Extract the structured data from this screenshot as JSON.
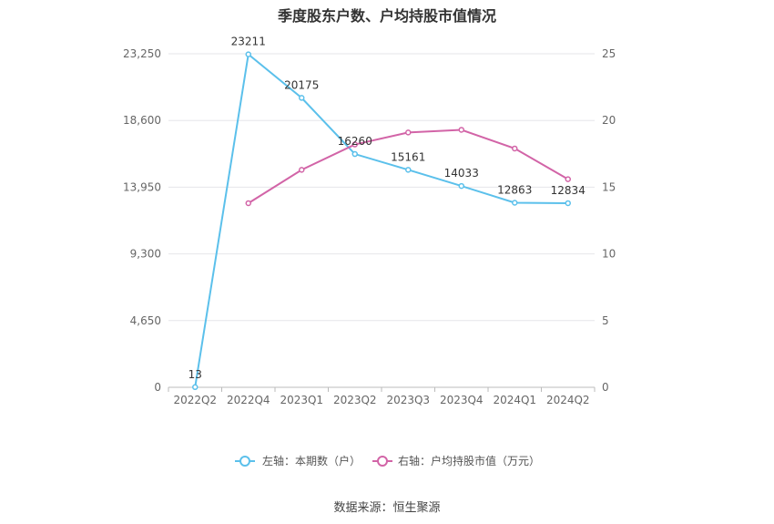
{
  "title": "季度股东户数、户均持股市值情况",
  "source": "数据来源：恒生聚源",
  "colors": {
    "left": "#5bc0eb",
    "right": "#d264a7",
    "grid": "#e6e6ea",
    "axis": "#bbbbbb"
  },
  "legend": {
    "left": "左轴：本期数（户）",
    "right": "右轴：户均持股市值（万元）"
  },
  "chart_data": {
    "type": "line",
    "categories": [
      "2022Q2",
      "2022Q4",
      "2023Q1",
      "2023Q2",
      "2023Q3",
      "2023Q4",
      "2024Q1",
      "2024Q2"
    ],
    "y_left": {
      "ylim": [
        0,
        23250
      ],
      "ticks": [
        "0",
        "4,650",
        "9,300",
        "13,950",
        "18,600",
        "23,250"
      ]
    },
    "y_right": {
      "ylim": [
        0,
        25
      ],
      "ticks": [
        "0",
        "5",
        "10",
        "15",
        "20",
        "25"
      ]
    },
    "series": [
      {
        "name": "左轴：本期数（户）",
        "axis": "left",
        "values": [
          13,
          23211,
          20175,
          16260,
          15161,
          14033,
          12863,
          12834
        ],
        "labels": [
          "13",
          "23211",
          "20175",
          "16260",
          "15161",
          "14033",
          "12863",
          "12834"
        ]
      },
      {
        "name": "右轴：户均持股市值（万元）",
        "axis": "right",
        "values": [
          null,
          13.8,
          16.3,
          18.2,
          19.1,
          19.3,
          17.9,
          15.6
        ]
      }
    ],
    "grid": true,
    "legend_position": "bottom"
  }
}
